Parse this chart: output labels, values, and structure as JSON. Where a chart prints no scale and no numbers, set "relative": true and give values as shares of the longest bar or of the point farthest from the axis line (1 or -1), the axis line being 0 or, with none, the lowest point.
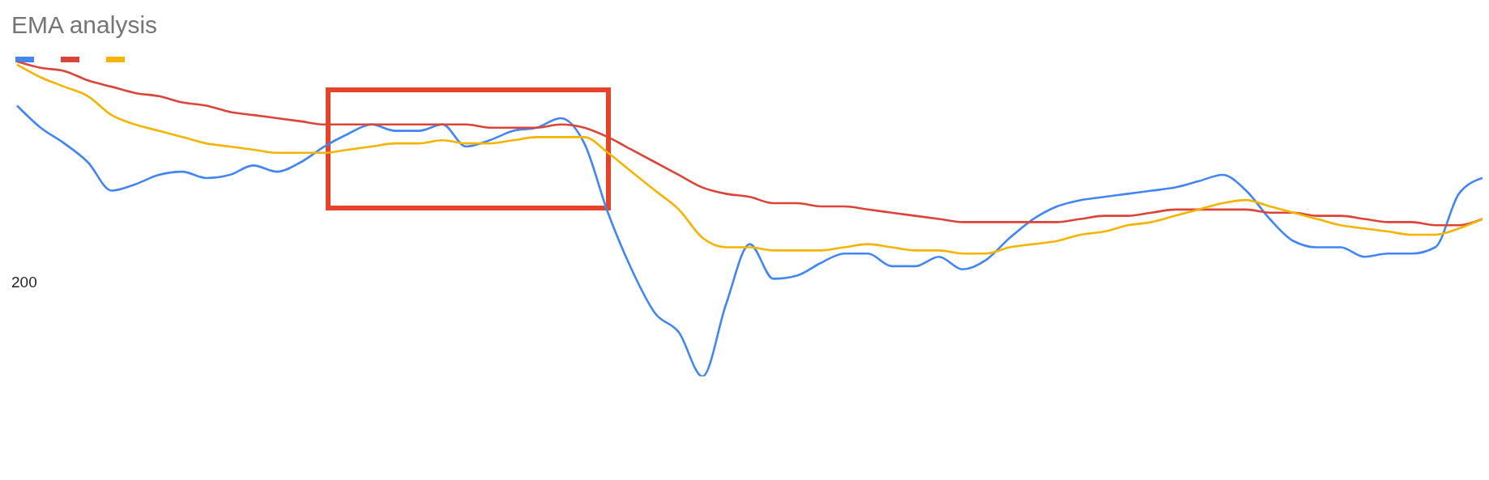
{
  "chart_data": {
    "type": "line",
    "title": "EMA analysis",
    "relative": true,
    "marker": "none",
    "line_style": "solid",
    "categories": [
      null,
      null,
      null,
      null,
      null,
      null,
      null,
      null,
      null,
      null,
      null,
      null,
      null,
      null,
      null,
      null,
      null,
      null,
      null,
      null,
      null,
      null,
      null,
      null,
      null,
      null,
      null,
      null,
      null,
      null,
      null,
      null,
      null,
      null,
      null,
      null,
      null,
      null,
      null,
      null,
      null,
      null,
      null,
      null,
      null,
      null,
      null,
      null,
      null,
      null,
      null,
      null,
      null,
      null,
      null,
      null,
      null,
      null,
      null,
      null,
      null,
      null,
      null
    ],
    "annotations": [
      "200"
    ],
    "series": [
      {
        "color": "#4285f4",
        "values": [
          0.86,
          0.79,
          0.74,
          0.68,
          0.59,
          0.61,
          0.64,
          0.65,
          0.63,
          0.64,
          0.67,
          0.65,
          0.68,
          0.73,
          0.77,
          0.8,
          0.78,
          0.78,
          0.8,
          0.73,
          0.75,
          0.78,
          0.79,
          0.82,
          0.74,
          0.52,
          0.34,
          0.2,
          0.14,
          0,
          0.23,
          0.42,
          0.31,
          0.32,
          0.36,
          0.39,
          0.39,
          0.35,
          0.35,
          0.38,
          0.34,
          0.37,
          0.44,
          0.5,
          0.54,
          0.56,
          0.57,
          0.58,
          0.59,
          0.6,
          0.62,
          0.64,
          0.59,
          0.5,
          0.43,
          0.41,
          0.41,
          0.38,
          0.39,
          0.39,
          0.41,
          0.58,
          0.63
        ]
      },
      {
        "color": "#db4437",
        "values": [
          1,
          0.98,
          0.97,
          0.94,
          0.92,
          0.9,
          0.89,
          0.87,
          0.86,
          0.84,
          0.83,
          0.82,
          0.81,
          0.8,
          0.8,
          0.8,
          0.8,
          0.8,
          0.8,
          0.8,
          0.79,
          0.79,
          0.79,
          0.8,
          0.79,
          0.76,
          0.72,
          0.68,
          0.64,
          0.6,
          0.58,
          0.57,
          0.55,
          0.55,
          0.54,
          0.54,
          0.53,
          0.52,
          0.51,
          0.5,
          0.49,
          0.49,
          0.49,
          0.49,
          0.49,
          0.5,
          0.51,
          0.51,
          0.52,
          0.53,
          0.53,
          0.53,
          0.53,
          0.52,
          0.52,
          0.51,
          0.51,
          0.5,
          0.49,
          0.49,
          0.48,
          0.48,
          0.5
        ]
      },
      {
        "color": "#f4b400",
        "values": [
          0.99,
          0.95,
          0.92,
          0.89,
          0.83,
          0.8,
          0.78,
          0.76,
          0.74,
          0.73,
          0.72,
          0.71,
          0.71,
          0.71,
          0.72,
          0.73,
          0.74,
          0.74,
          0.75,
          0.74,
          0.74,
          0.75,
          0.76,
          0.76,
          0.76,
          0.71,
          0.65,
          0.59,
          0.53,
          0.44,
          0.41,
          0.41,
          0.4,
          0.4,
          0.4,
          0.41,
          0.42,
          0.41,
          0.4,
          0.4,
          0.39,
          0.39,
          0.41,
          0.42,
          0.43,
          0.45,
          0.46,
          0.48,
          0.49,
          0.51,
          0.53,
          0.55,
          0.56,
          0.54,
          0.52,
          0.5,
          0.48,
          0.47,
          0.46,
          0.45,
          0.45,
          0.47,
          0.5
        ]
      }
    ]
  }
}
